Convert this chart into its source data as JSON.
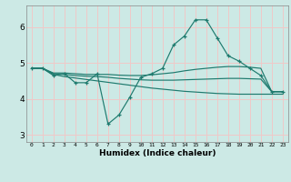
{
  "xlabel": "Humidex (Indice chaleur)",
  "background_color": "#cce9e5",
  "grid_color": "#f0c8c8",
  "line_color": "#1e7a6e",
  "x_ticks": [
    0,
    1,
    2,
    3,
    4,
    5,
    6,
    7,
    8,
    9,
    10,
    11,
    12,
    13,
    14,
    15,
    16,
    17,
    18,
    19,
    20,
    21,
    22,
    23
  ],
  "ylim": [
    2.8,
    6.6
  ],
  "xlim": [
    -0.5,
    23.5
  ],
  "series1_x": [
    0,
    1,
    2,
    3,
    4,
    5,
    6,
    7,
    8,
    9,
    10,
    11,
    12,
    13,
    14,
    15,
    16,
    17,
    18,
    19,
    20,
    21,
    22,
    23
  ],
  "series1_y": [
    4.85,
    4.85,
    4.65,
    4.7,
    4.45,
    4.45,
    4.7,
    3.3,
    3.55,
    4.05,
    4.6,
    4.7,
    4.85,
    5.5,
    5.75,
    6.2,
    6.2,
    5.7,
    5.2,
    5.05,
    4.85,
    4.65,
    4.2,
    4.2
  ],
  "series2_x": [
    0,
    1,
    2,
    3,
    4,
    5,
    6,
    7,
    8,
    9,
    10,
    11,
    12,
    13,
    14,
    15,
    16,
    17,
    18,
    19,
    20,
    21,
    22,
    23
  ],
  "series2_y": [
    4.85,
    4.85,
    4.72,
    4.72,
    4.7,
    4.68,
    4.68,
    4.68,
    4.66,
    4.65,
    4.65,
    4.67,
    4.7,
    4.73,
    4.78,
    4.82,
    4.85,
    4.88,
    4.9,
    4.9,
    4.88,
    4.85,
    4.2,
    4.2
  ],
  "series3_x": [
    0,
    1,
    2,
    3,
    4,
    5,
    6,
    7,
    8,
    9,
    10,
    11,
    12,
    13,
    14,
    15,
    16,
    17,
    18,
    19,
    20,
    21,
    22,
    23
  ],
  "series3_y": [
    4.85,
    4.85,
    4.7,
    4.68,
    4.65,
    4.63,
    4.62,
    4.6,
    4.57,
    4.55,
    4.53,
    4.52,
    4.52,
    4.52,
    4.53,
    4.54,
    4.55,
    4.56,
    4.57,
    4.57,
    4.56,
    4.55,
    4.2,
    4.2
  ],
  "series4_x": [
    0,
    1,
    2,
    3,
    4,
    5,
    6,
    7,
    8,
    9,
    10,
    11,
    12,
    13,
    14,
    15,
    16,
    17,
    18,
    19,
    20,
    21,
    22,
    23
  ],
  "series4_y": [
    4.85,
    4.85,
    4.68,
    4.62,
    4.58,
    4.54,
    4.5,
    4.46,
    4.42,
    4.38,
    4.34,
    4.3,
    4.27,
    4.24,
    4.21,
    4.19,
    4.17,
    4.15,
    4.14,
    4.13,
    4.13,
    4.13,
    4.13,
    4.13
  ]
}
